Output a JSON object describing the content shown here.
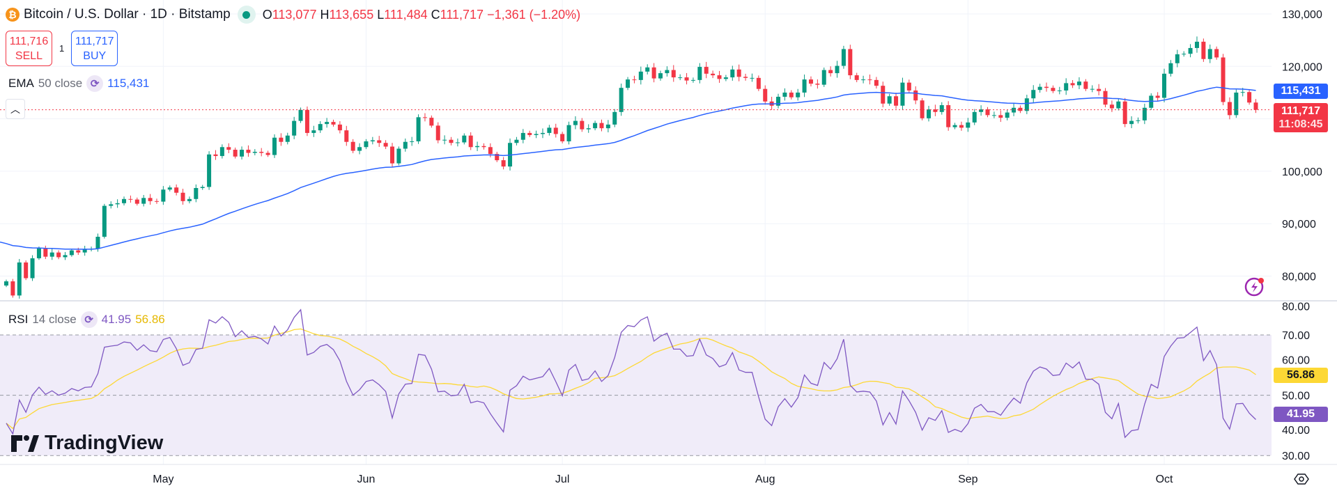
{
  "header": {
    "symbol_icon": "bitcoin-icon",
    "title": "Bitcoin / U.S. Dollar · 1D · Bitstamp",
    "market_status_icon": "market-open-dot",
    "o_label": "O",
    "open": "113,077",
    "h_label": "H",
    "high": "113,655",
    "l_label": "L",
    "low": "111,484",
    "c_label": "C",
    "close": "111,717",
    "change": "−1,361 (−1.20%)"
  },
  "trade": {
    "sell_price": "111,716",
    "sell_label": "SELL",
    "quantity": "1",
    "buy_price": "111,717",
    "buy_label": "BUY"
  },
  "ema_legend": {
    "name": "EMA",
    "params": "50 close",
    "value": "115,431"
  },
  "rsi_legend": {
    "name": "RSI",
    "params": "14 close",
    "value": "41.95",
    "ma_value": "56.86"
  },
  "price_axis": {
    "ticks": [
      "130,000",
      "120,000",
      "100,000",
      "90,000",
      "80,000"
    ],
    "ema_label": "115,431",
    "last_price": "111,717",
    "countdown": "11:08:45"
  },
  "rsi_axis": {
    "ticks": [
      "80.00",
      "70.00",
      "60.00",
      "50.00",
      "40.00",
      "30.00"
    ],
    "rsi_label": "41.95",
    "ma_label": "56.86"
  },
  "time_axis": {
    "months": [
      "May",
      "Jun",
      "Jul",
      "Aug",
      "Sep",
      "Oct"
    ]
  },
  "branding": {
    "logo_text": "TradingView"
  },
  "colors": {
    "up": "#089981",
    "down": "#f23645",
    "ema": "#2962ff",
    "rsi": "#7e57c2",
    "rsi_ma": "#fdd835",
    "band": "#f0ecf9"
  },
  "chart_data": {
    "type": "candlestick",
    "interval": "1D",
    "first_date": "2025-04-07",
    "first_open": 78200,
    "price_range": [
      78000,
      131000
    ],
    "rsi_range": [
      25,
      82
    ],
    "close": [
      79000,
      76300,
      82600,
      79600,
      83400,
      85300,
      83700,
      84500,
      83600,
      84000,
      84900,
      84500,
      85100,
      85200,
      87500,
      93400,
      93700,
      93900,
      94700,
      94600,
      93800,
      94900,
      94300,
      94200,
      96500,
      96900,
      95900,
      94300,
      94700,
      96800,
      97000,
      103200,
      102900,
      104600,
      104100,
      102800,
      104100,
      103500,
      103700,
      103500,
      103100,
      106400,
      105600,
      106800,
      109600,
      111700,
      107300,
      107800,
      109000,
      109400,
      108900,
      107800,
      105600,
      103900,
      104600,
      105700,
      105900,
      105400,
      104700,
      101500,
      104300,
      105600,
      105700,
      110300,
      110200,
      108700,
      105900,
      106000,
      105400,
      105500,
      106800,
      104600,
      104800,
      104600,
      103300,
      102100,
      100900,
      105400,
      106000,
      107300,
      106900,
      107100,
      107300,
      108300,
      107100,
      105700,
      108800,
      109600,
      108000,
      108200,
      109200,
      108200,
      108900,
      111300,
      115900,
      117500,
      117400,
      119000,
      119800,
      117700,
      118700,
      119300,
      117900,
      117900,
      117300,
      117400,
      119900,
      118600,
      118300,
      117600,
      117900,
      119400,
      118000,
      117800,
      117800,
      115700,
      113300,
      112500,
      114200,
      115000,
      114100,
      115000,
      117500,
      116700,
      116500,
      119300,
      118700,
      120100,
      123300,
      118300,
      117400,
      117500,
      117400,
      116300,
      112900,
      114300,
      112500,
      116900,
      115400,
      113500,
      110100,
      111800,
      111300,
      112600,
      108400,
      108800,
      108300,
      109300,
      111300,
      111800,
      110700,
      110700,
      110200,
      111200,
      112100,
      111500,
      113900,
      115500,
      116100,
      115900,
      115300,
      115400,
      116800,
      116400,
      117100,
      115700,
      115700,
      115300,
      112700,
      112000,
      113300,
      109000,
      109600,
      109700,
      112100,
      114400,
      114000,
      118600,
      120600,
      122300,
      122400,
      123500,
      124700,
      121400,
      123300,
      121700,
      113200,
      110700,
      115000,
      115100,
      113100,
      111717
    ],
    "ema_period": 50,
    "ema_start": 86500,
    "rsi_period": 14,
    "rsi_ma_period": 14,
    "rsi_levels": [
      70,
      50,
      30
    ]
  }
}
